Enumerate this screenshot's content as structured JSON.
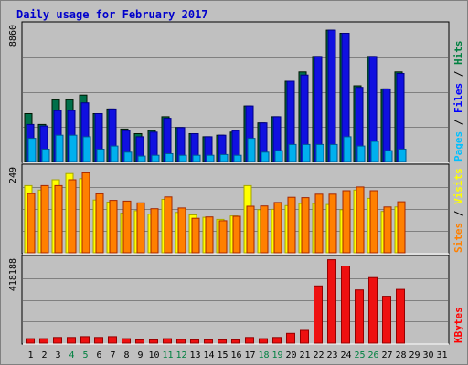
{
  "chart_data": {
    "type": "bar",
    "title": "Daily usage for February 2017",
    "days": [
      "1",
      "2",
      "3",
      "4",
      "5",
      "6",
      "7",
      "8",
      "9",
      "10",
      "11",
      "12",
      "13",
      "14",
      "15",
      "16",
      "17",
      "18",
      "19",
      "20",
      "21",
      "22",
      "23",
      "24",
      "25",
      "26",
      "27",
      "28",
      "29",
      "30",
      "31"
    ],
    "weekend_days": [
      "4",
      "5",
      "11",
      "12",
      "18",
      "19",
      "25",
      "26"
    ],
    "data_day_count": 28,
    "panels": [
      {
        "id": "hits",
        "max_label": "8860",
        "ymax": 8860,
        "labels": [
          {
            "text": "Pages",
            "color": "#00c0ff"
          },
          {
            "text": "Files",
            "color": "#0000ff"
          },
          {
            "text": "Hits",
            "color": "#008040"
          }
        ],
        "series": [
          {
            "name": "Hits",
            "color": "#006f4a",
            "values": [
              3100,
              2400,
              4000,
              4000,
              4300,
              3100,
              3400,
              2100,
              1800,
              2000,
              2900,
              2200,
              1800,
              1600,
              1700,
              1900,
              3600,
              2500,
              2900,
              5200,
              5800,
              6800,
              8500,
              8300,
              4900,
              6800,
              4700,
              5800
            ]
          },
          {
            "name": "Files",
            "color": "#1010e0",
            "values": [
              2400,
              2300,
              3300,
              3300,
              3800,
              3100,
              3400,
              2000,
              1600,
              1900,
              2800,
              2200,
              1800,
              1600,
              1700,
              2000,
              3600,
              2500,
              2900,
              5200,
              5600,
              6800,
              8500,
              8300,
              4800,
              6800,
              4700,
              5700
            ]
          },
          {
            "name": "Pages",
            "color": "#00b0ee",
            "values": [
              1500,
              800,
              1700,
              1700,
              1600,
              800,
              1000,
              600,
              350,
              400,
              500,
              400,
              400,
              400,
              450,
              400,
              1500,
              600,
              700,
              1100,
              1100,
              1100,
              1100,
              1600,
              1000,
              1300,
              700,
              800
            ]
          }
        ]
      },
      {
        "id": "visits",
        "max_label": "249",
        "ymax": 249,
        "labels": [
          {
            "text": "Sites",
            "color": "#ff8000"
          },
          {
            "text": "Visits",
            "color": "#ffff00"
          }
        ],
        "series": [
          {
            "name": "Visits",
            "color": "#ffff00",
            "values": [
              195,
              182,
              212,
              230,
              215,
              153,
              147,
              115,
              122,
              112,
              155,
              117,
              110,
              103,
              97,
              107,
              195,
              125,
              126,
              137,
              143,
              143,
              140,
              125,
              182,
              158,
              120,
              133
            ]
          },
          {
            "name": "Sites",
            "color": "#ff8000",
            "values": [
              172,
              195,
              195,
              212,
              232,
              171,
              152,
              150,
              145,
              128,
              162,
              130,
              100,
              104,
              93,
              106,
              135,
              136,
              146,
              161,
              160,
              170,
              170,
              180,
              191,
              180,
              133,
              148
            ]
          }
        ]
      },
      {
        "id": "kbytes",
        "max_label": "418188",
        "ymax": 418188,
        "labels": [
          {
            "text": "KBytes",
            "color": "#ff0000"
          }
        ],
        "series": [
          {
            "name": "KBytes",
            "color": "#ee1010",
            "values": [
              22000,
              22000,
              28000,
              28000,
              32000,
              28000,
              32000,
              22000,
              16000,
              16000,
              22000,
              18000,
              16000,
              16000,
              16000,
              16000,
              28000,
              22000,
              28000,
              48000,
              63000,
              282000,
              411000,
              380000,
              262000,
              323000,
              231000,
              265000
            ]
          }
        ]
      }
    ]
  }
}
